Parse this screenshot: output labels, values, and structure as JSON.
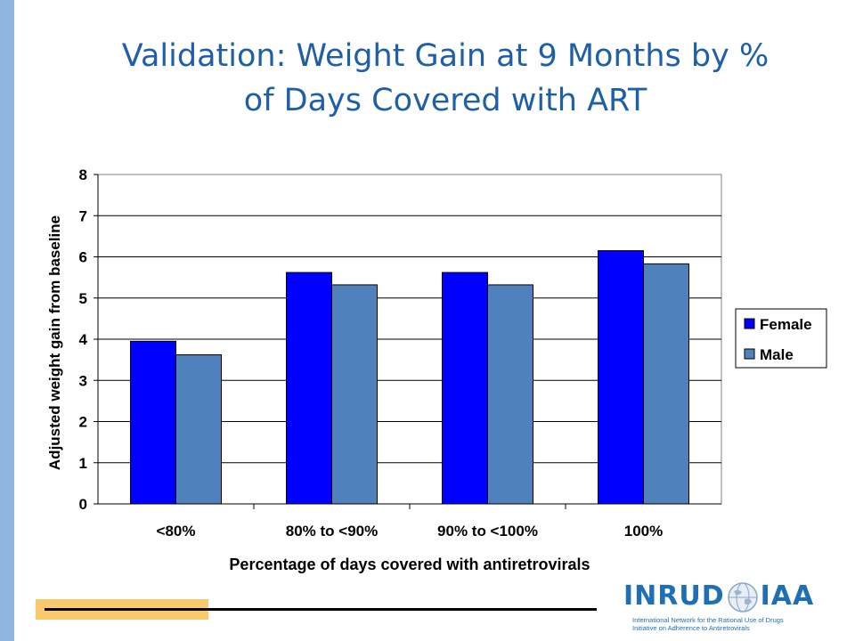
{
  "slide": {
    "title_line1": "Validation: Weight Gain at 9 Months by %",
    "title_line2": "of Days Covered with ART"
  },
  "footer": {
    "logo_left": "INRUD",
    "logo_right": "IAA",
    "logo_line1": "International Network for the Rational Use of Drugs",
    "logo_line2": "Initiative on Adherence to Antiretrovirals"
  },
  "colors": {
    "female": "#0000ff",
    "male": "#4f81bd",
    "title": "#1f5fa8",
    "side_bar": "#8fb4de",
    "footer_accent": "#f9c96b"
  },
  "chart_data": {
    "type": "bar",
    "categories": [
      "<80%",
      "80% to <90%",
      "90% to <100%",
      "100%"
    ],
    "series": [
      {
        "name": "Female",
        "values": [
          3.95,
          5.62,
          5.62,
          6.15
        ]
      },
      {
        "name": "Male",
        "values": [
          3.62,
          5.32,
          5.32,
          5.83
        ]
      }
    ],
    "title": "",
    "xlabel": "Percentage of days covered with antiretrovirals",
    "ylabel": "Adjusted weight gain from baseline",
    "ylim": [
      0,
      8
    ],
    "yticks": [
      "0",
      "1",
      "2",
      "3",
      "4",
      "5",
      "6",
      "7",
      "8"
    ],
    "grid": true,
    "legend": "right"
  }
}
